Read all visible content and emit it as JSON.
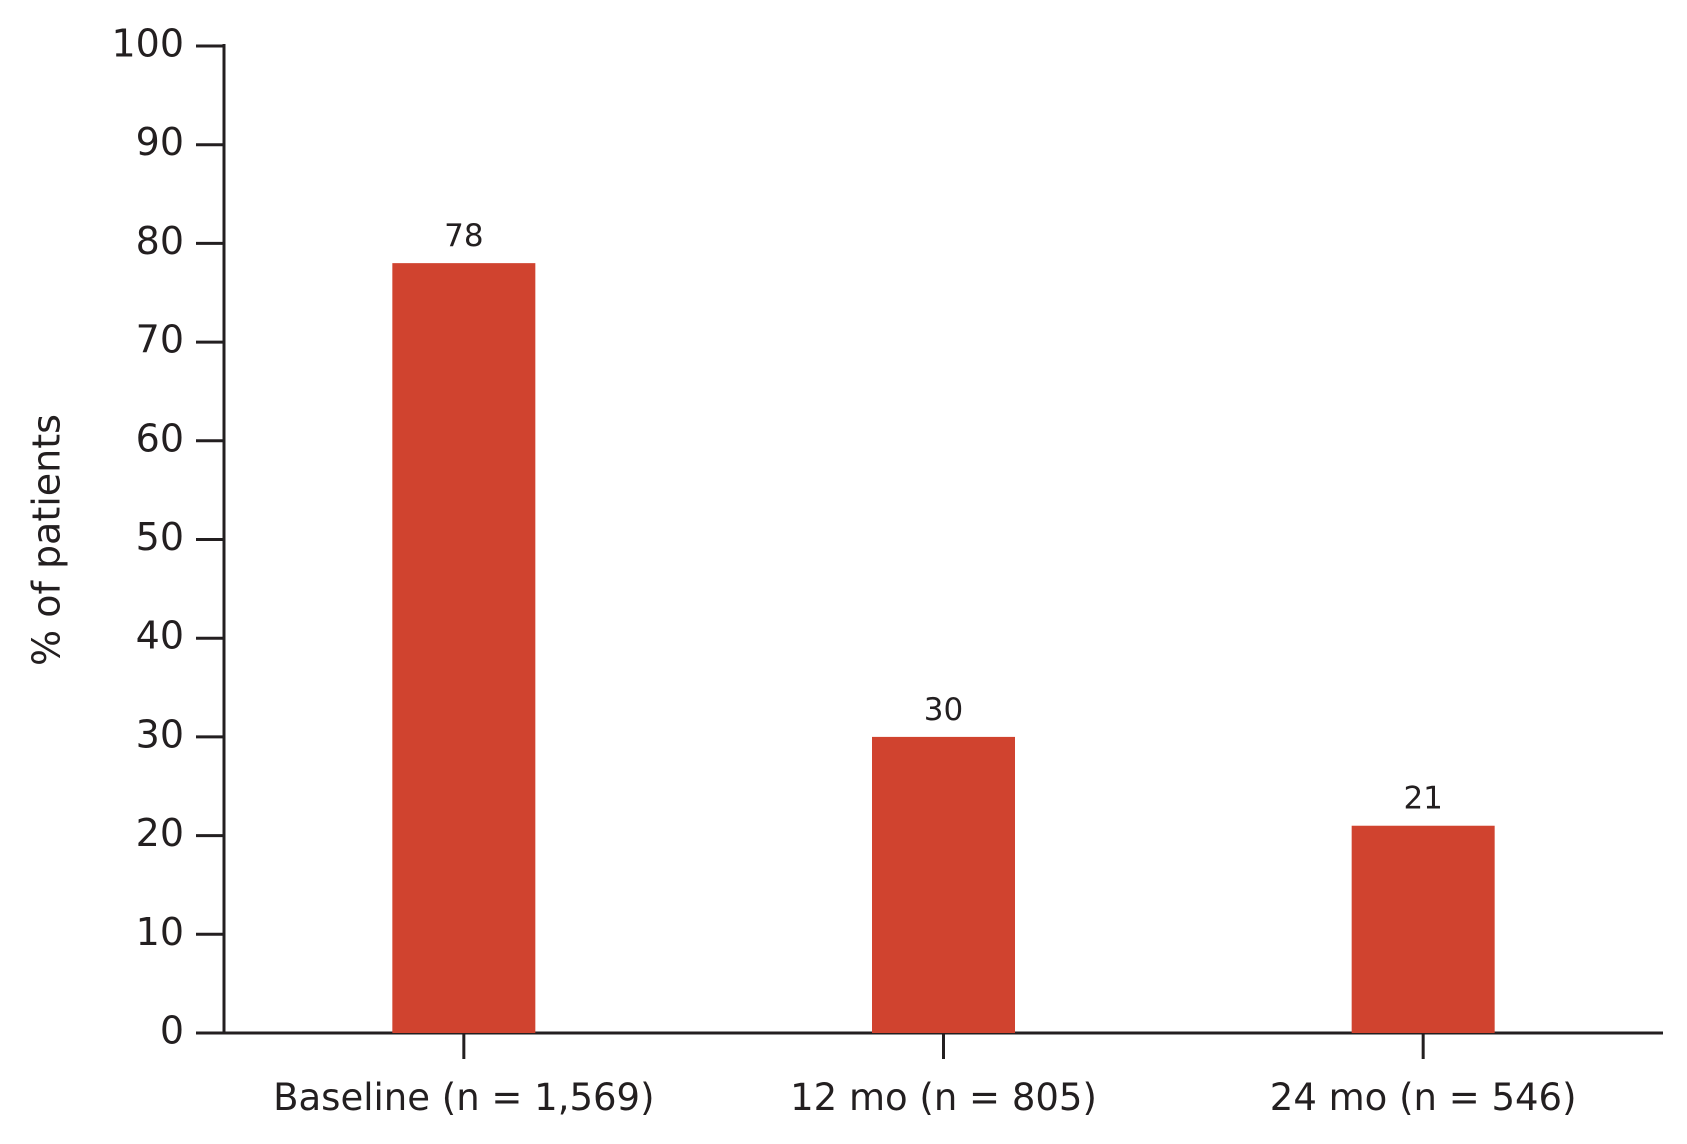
{
  "chart_data": {
    "type": "bar",
    "y_label": "% of patients",
    "categories": [
      "Baseline (n = 1,569)",
      "12 mo (n = 805)",
      "24 mo (n = 546)"
    ],
    "values": [
      78,
      30,
      21
    ],
    "color": "#d0432f",
    "ylim": [
      0,
      100
    ],
    "yticks": [
      0,
      10,
      20,
      30,
      40,
      50,
      60,
      70,
      80,
      90,
      100
    ],
    "grid": false
  }
}
